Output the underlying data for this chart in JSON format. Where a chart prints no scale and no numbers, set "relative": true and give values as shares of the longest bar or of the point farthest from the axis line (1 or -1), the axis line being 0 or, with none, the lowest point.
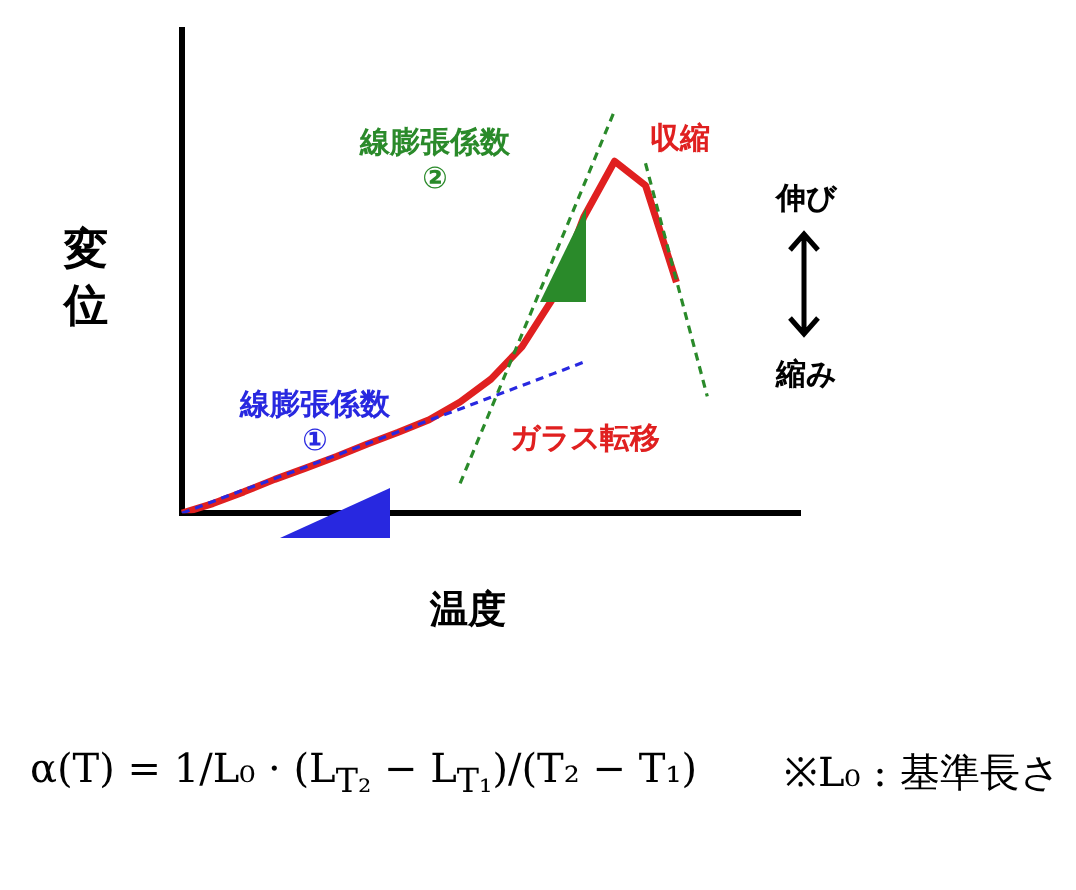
{
  "chart_data": {
    "type": "line",
    "relative": true,
    "xlabel": "温度",
    "ylabel": "変位",
    "marker": "none",
    "categories": [
      null,
      null,
      null,
      null,
      null,
      null,
      null,
      null,
      null,
      null,
      null,
      null,
      null,
      null,
      null,
      null,
      null,
      null,
      null,
      null,
      null
    ],
    "series": [
      {
        "color": "#e02020",
        "values": [
          0,
          0.024,
          0.053,
          0.084,
          0.112,
          0.141,
          0.172,
          0.201,
          0.232,
          0.276,
          0.333,
          0.413,
          0.533,
          0.735,
          0.874,
          0.814,
          0.574,
          null,
          null,
          null,
          null
        ]
      },
      {
        "name": "線膨張係数\n①",
        "color": "#2828e0",
        "line_style": "dashed",
        "values": [
          0,
          0.029,
          0.058,
          0.086,
          0.115,
          0.144,
          0.173,
          0.202,
          0.231,
          0.259,
          0.288,
          0.317,
          0.346,
          0.375,
          null,
          null,
          null,
          null,
          null,
          null,
          null
        ]
      },
      {
        "name": "線膨張係数\n②",
        "color": "#2a8a2a",
        "line_style": "dashed",
        "values": [
          null,
          null,
          null,
          null,
          null,
          null,
          null,
          null,
          null,
          0.074,
          0.259,
          0.444,
          0.629,
          0.814,
          1,
          null,
          null,
          null,
          null,
          null,
          null
        ]
      },
      {
        "color": "#2a8a2a",
        "line_style": "dashed",
        "values": [
          null,
          null,
          null,
          null,
          null,
          null,
          null,
          null,
          null,
          null,
          null,
          null,
          null,
          null,
          null,
          0.869,
          0.579,
          0.29,
          null,
          null,
          null
        ]
      }
    ],
    "annotations": [
      "収縮",
      "ガラス転移",
      "伸び",
      "縮み",
      "α(T) = 1/L₀ · (L$_{T₂}$ − L$_{T₁}$)/(T₂ − T₁)",
      "※L₀ : 基準長さ"
    ]
  }
}
